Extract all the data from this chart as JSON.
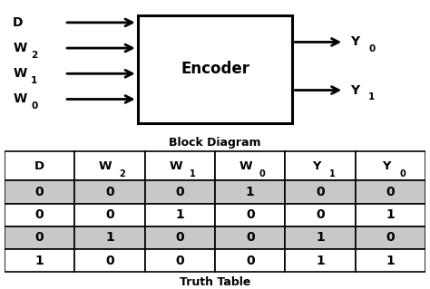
{
  "title_block": "Block Diagram",
  "title_table": "Truth Table",
  "encoder_label": "Encoder",
  "input_labels": [
    "D",
    "W",
    "W",
    "W"
  ],
  "input_subs": [
    "",
    "2",
    "1",
    "0"
  ],
  "output_labels": [
    "Y",
    "Y"
  ],
  "output_subs": [
    "0",
    "1"
  ],
  "col_headers": [
    "D",
    "W",
    "W",
    "W",
    "Y",
    "Y"
  ],
  "col_subs": [
    "",
    "2",
    "1",
    "0",
    "1",
    "0"
  ],
  "table_data": [
    [
      "0",
      "0",
      "0",
      "1",
      "0",
      "0"
    ],
    [
      "0",
      "0",
      "1",
      "0",
      "0",
      "1"
    ],
    [
      "0",
      "1",
      "0",
      "0",
      "1",
      "0"
    ],
    [
      "1",
      "0",
      "0",
      "0",
      "1",
      "1"
    ]
  ],
  "row_colors": [
    "#c8c8c8",
    "#ffffff",
    "#c8c8c8",
    "#ffffff"
  ],
  "background": "#ffffff",
  "fig_width": 4.74,
  "fig_height": 3.19,
  "dpi": 100
}
